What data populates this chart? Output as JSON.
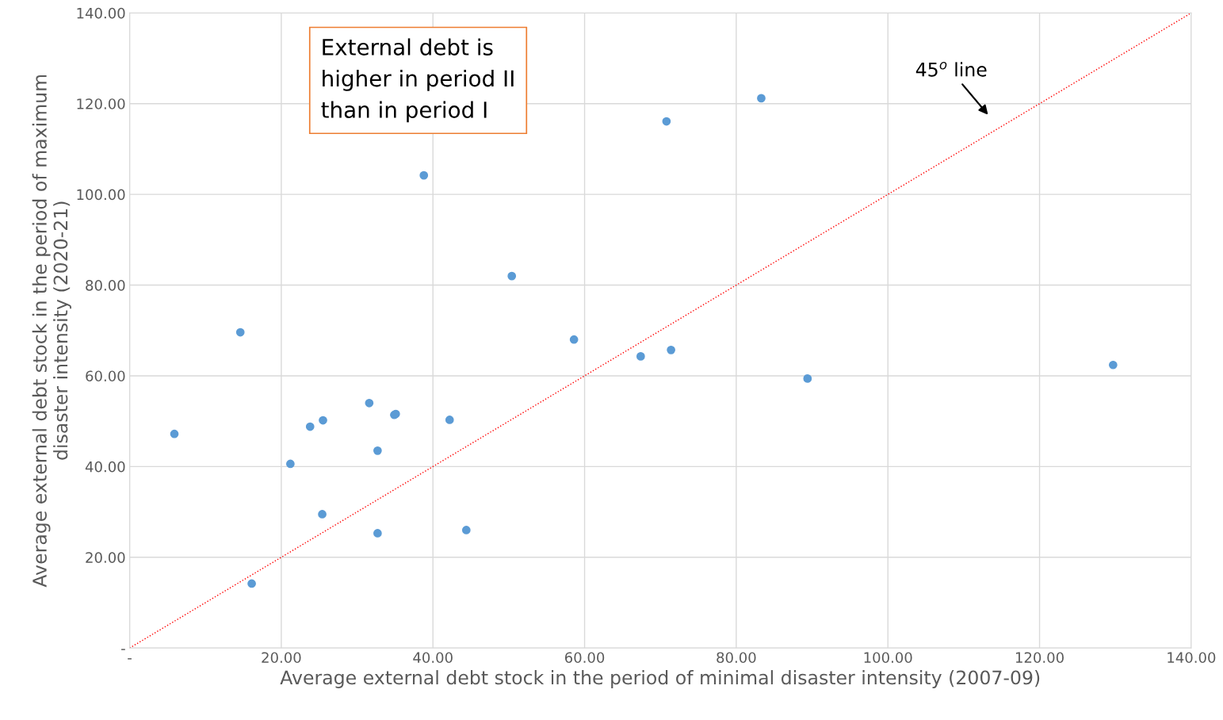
{
  "chart_data": {
    "type": "scatter",
    "xlabel": "Average external debt stock in the period of minimal disaster intensity (2007-09)",
    "ylabel": "Average external debt stock in the period of maximum\ndisaster intensity (2020-21)",
    "xlim": [
      0,
      140
    ],
    "ylim": [
      0,
      140
    ],
    "xticks": [
      {
        "value": 0,
        "label": "-"
      },
      {
        "value": 20,
        "label": "20.00"
      },
      {
        "value": 40,
        "label": "40.00"
      },
      {
        "value": 60,
        "label": "60.00"
      },
      {
        "value": 80,
        "label": "80.00"
      },
      {
        "value": 100,
        "label": "100.00"
      },
      {
        "value": 120,
        "label": "120.00"
      },
      {
        "value": 140,
        "label": "140.00"
      }
    ],
    "yticks": [
      {
        "value": 0,
        "label": "-"
      },
      {
        "value": 20,
        "label": "20.00"
      },
      {
        "value": 40,
        "label": "40.00"
      },
      {
        "value": 60,
        "label": "60.00"
      },
      {
        "value": 80,
        "label": "80.00"
      },
      {
        "value": 100,
        "label": "100.00"
      },
      {
        "value": 120,
        "label": "120.00"
      },
      {
        "value": 140,
        "label": "140.00"
      }
    ],
    "grid": true,
    "series": [
      {
        "marker": "circle",
        "color": "#5b9bd5",
        "x": [
          5.9,
          14.6,
          16.1,
          21.2,
          23.8,
          25.5,
          25.4,
          31.6,
          32.7,
          32.7,
          34.9,
          35.1,
          38.8,
          42.2,
          44.4,
          50.4,
          58.6,
          67.4,
          70.8,
          71.4,
          83.3,
          89.4,
          129.7
        ],
        "values": [
          47.2,
          69.6,
          14.2,
          40.6,
          48.8,
          50.2,
          29.5,
          54.0,
          43.5,
          25.3,
          51.4,
          51.6,
          104.2,
          50.3,
          26.0,
          82.0,
          68.0,
          64.3,
          116.1,
          65.7,
          121.2,
          59.4,
          62.4
        ]
      },
      {
        "type": "line",
        "color": "#ff0000",
        "line_style": "dotted",
        "x": [
          0,
          140
        ],
        "values": [
          0,
          140
        ]
      }
    ],
    "annotations": [
      "External debt is\nhigher in period II\nthan in period I",
      "45$^{o}$ line"
    ]
  }
}
